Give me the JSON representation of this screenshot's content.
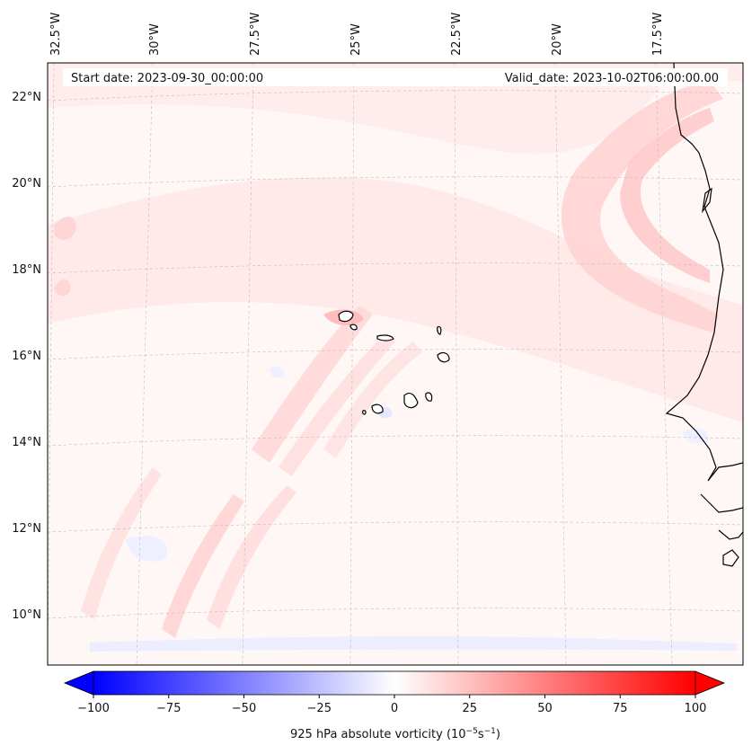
{
  "map": {
    "start_date_text": "Start date: 2023-09-30_00:00:00",
    "valid_date_text": "Valid_date: 2023-10-02T06:00:00.00",
    "lon_labels": [
      "32.5°W",
      "30°W",
      "27.5°W",
      "25°W",
      "22.5°W",
      "20°W",
      "17.5°W"
    ],
    "lat_labels": [
      "22°N",
      "20°N",
      "18°N",
      "16°N",
      "14°N",
      "12°N",
      "10°N"
    ],
    "colors": {
      "background": "#fff5f5",
      "positive_light": "#ffe4e4",
      "positive_mid": "#ffc8c8",
      "negative_light": "#eef0ff",
      "coast": "#000000",
      "grid": "#bbbbbb"
    }
  },
  "colorbar": {
    "ticks": [
      "−100",
      "−75",
      "−50",
      "−25",
      "0",
      "25",
      "50",
      "75",
      "100"
    ],
    "min": -100,
    "max": 100,
    "label_main": "925 hPa absolute vorticity (10",
    "label_exp1": "−5",
    "label_mid": "s",
    "label_exp2": "−1",
    "label_end": ")"
  }
}
